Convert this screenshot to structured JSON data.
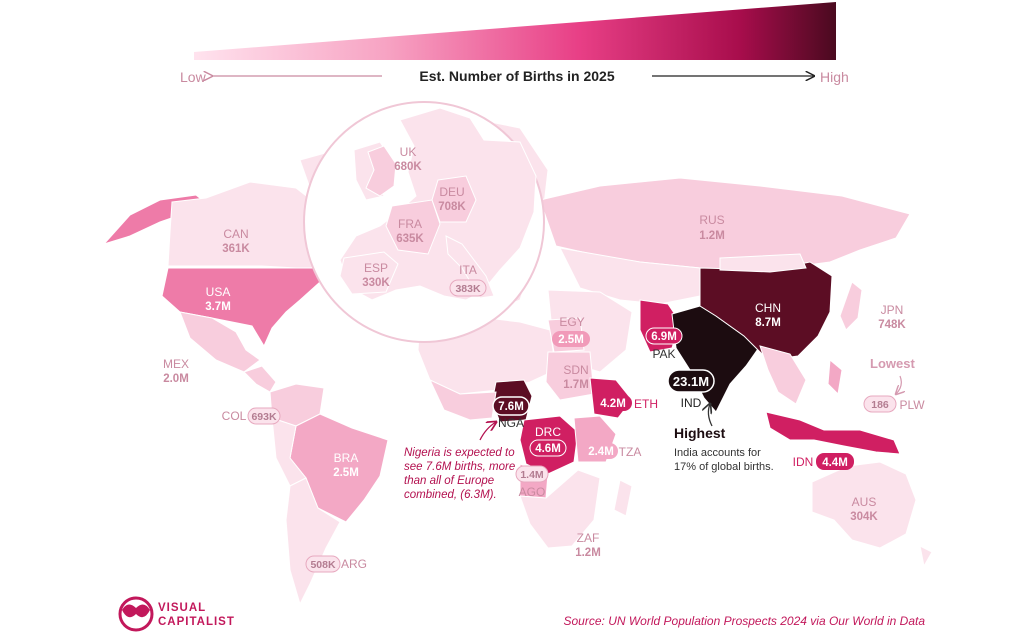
{
  "legend": {
    "title": "Est. Number of Births in 2025",
    "low": "Low",
    "high": "High",
    "gradient": [
      "#ffe3ee",
      "#f7a3c3",
      "#e83f86",
      "#a80d4c",
      "#4a0a1f"
    ]
  },
  "colors": {
    "very_light": "#fbe3ec",
    "light": "#f8cddd",
    "medium_light": "#f3a8c5",
    "medium": "#ee7ba8",
    "medium_dark": "#e2447f",
    "dark": "#d01f62",
    "very_dark": "#5c0d24",
    "darkest": "#1c0c10"
  },
  "countries": [
    {
      "code": "CAN",
      "value": "361K"
    },
    {
      "code": "USA",
      "value": "3.7M"
    },
    {
      "code": "MEX",
      "value": "2.0M"
    },
    {
      "code": "COL",
      "value": "693K"
    },
    {
      "code": "BRA",
      "value": "2.5M"
    },
    {
      "code": "ARG",
      "value": "508K"
    },
    {
      "code": "UK",
      "value": "680K"
    },
    {
      "code": "DEU",
      "value": "708K"
    },
    {
      "code": "FRA",
      "value": "635K"
    },
    {
      "code": "ESP",
      "value": "330K"
    },
    {
      "code": "ITA",
      "value": "383K"
    },
    {
      "code": "RUS",
      "value": "1.2M"
    },
    {
      "code": "EGY",
      "value": "2.5M"
    },
    {
      "code": "SDN",
      "value": "1.7M"
    },
    {
      "code": "ETH",
      "value": "4.2M"
    },
    {
      "code": "NGA",
      "value": "7.6M"
    },
    {
      "code": "DRC",
      "value": "4.6M"
    },
    {
      "code": "TZA",
      "value": "2.4M"
    },
    {
      "code": "AGO",
      "value": "1.4M"
    },
    {
      "code": "ZAF",
      "value": "1.2M"
    },
    {
      "code": "PAK",
      "value": "6.9M"
    },
    {
      "code": "IND",
      "value": "23.1M"
    },
    {
      "code": "CHN",
      "value": "8.7M"
    },
    {
      "code": "JPN",
      "value": "748K"
    },
    {
      "code": "IDN",
      "value": "4.4M"
    },
    {
      "code": "AUS",
      "value": "304K"
    },
    {
      "code": "PLW",
      "value": "186"
    }
  ],
  "annotations": {
    "nigeria": [
      "Nigeria is expected to",
      "see 7.6M births, more",
      "than all of Europe",
      "combined, (6.3M)."
    ],
    "highest_title": "Highest",
    "highest_text": [
      "India accounts for",
      "17% of global births."
    ],
    "lowest_title": "Lowest"
  },
  "branding": {
    "line1": "VISUAL",
    "line2": "CAPITALIST"
  },
  "source": "Source: UN World Population Prospects 2024 via Our World in Data"
}
